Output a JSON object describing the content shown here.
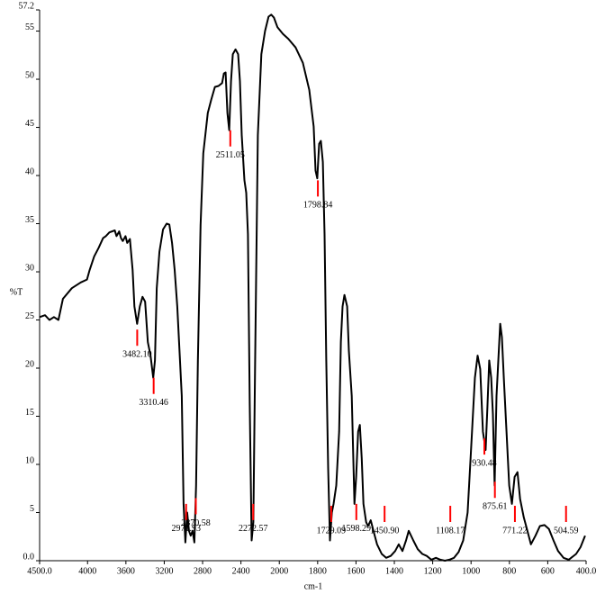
{
  "chart_data": {
    "type": "line",
    "y_label": "%T",
    "x_label": "cm-1",
    "xlim": [
      4500,
      400
    ],
    "xticks": [
      {
        "value": 4500,
        "label": "4500.0"
      },
      4000,
      3600,
      3200,
      2800,
      2400,
      2000,
      1800,
      1600,
      1400,
      1200,
      1000,
      800,
      600,
      {
        "value": 400,
        "label": "400.0"
      }
    ],
    "x_scale_change": {
      "at": 2000,
      "factor": 2
    },
    "ylim": [
      0,
      57.2
    ],
    "yticks": [
      {
        "value": 0,
        "label": "0.0"
      },
      5,
      10,
      15,
      20,
      25,
      30,
      35,
      40,
      45,
      50,
      55,
      57.2
    ],
    "color": "#000000",
    "x": [
      4500,
      4444,
      4398,
      4351,
      4304,
      4257,
      4164,
      4071,
      4006,
      3978,
      3931,
      3884,
      3838,
      3810,
      3772,
      3716,
      3698,
      3670,
      3651,
      3632,
      3604,
      3586,
      3558,
      3530,
      3511,
      3483,
      3455,
      3427,
      3399,
      3371,
      3343,
      3315,
      3297,
      3278,
      3250,
      3213,
      3175,
      3147,
      3119,
      3091,
      3064,
      3045,
      3017,
      2998,
      2980,
      2961,
      2942,
      2924,
      2905,
      2886,
      2868,
      2849,
      2821,
      2793,
      2746,
      2709,
      2672,
      2634,
      2597,
      2578,
      2560,
      2541,
      2522,
      2504,
      2485,
      2457,
      2429,
      2411,
      2392,
      2364,
      2345,
      2327,
      2308,
      2289,
      2271,
      2252,
      2224,
      2187,
      2149,
      2112,
      2084,
      2056,
      2019,
      1981,
      1953,
      1915,
      1877,
      1844,
      1821,
      1811,
      1802,
      1792,
      1783,
      1773,
      1764,
      1755,
      1745,
      1736,
      1726,
      1717,
      1703,
      1688,
      1679,
      1670,
      1660,
      1646,
      1637,
      1622,
      1608,
      1599,
      1589,
      1580,
      1570,
      1561,
      1547,
      1537,
      1523,
      1509,
      1490,
      1466,
      1443,
      1419,
      1396,
      1377,
      1358,
      1339,
      1325,
      1301,
      1278,
      1254,
      1231,
      1207,
      1183,
      1160,
      1136,
      1113,
      1089,
      1065,
      1041,
      1018,
      995,
      980,
      966,
      952,
      938,
      924,
      914,
      905,
      895,
      886,
      877,
      867,
      858,
      848,
      839,
      829,
      815,
      801,
      787,
      773,
      758,
      744,
      725,
      706,
      688,
      664,
      641,
      617,
      594,
      570,
      546,
      518,
      490,
      452,
      429,
      405
    ],
    "values": [
      25.3,
      25.5,
      25.0,
      25.3,
      25.0,
      27.2,
      28.3,
      28.9,
      29.2,
      30.2,
      31.6,
      32.5,
      33.5,
      33.7,
      34.1,
      34.3,
      33.7,
      34.2,
      33.5,
      33.2,
      33.7,
      33.0,
      33.4,
      30.2,
      26.4,
      24.6,
      26.4,
      27.4,
      26.9,
      22.7,
      21.3,
      19.0,
      20.8,
      28.3,
      32.1,
      34.4,
      35.0,
      34.9,
      33.0,
      30.2,
      26.4,
      22.7,
      17.1,
      5.9,
      1.9,
      5.0,
      3.1,
      2.6,
      3.1,
      1.9,
      7.8,
      20.8,
      34.9,
      42.3,
      46.5,
      47.9,
      49.2,
      49.3,
      49.6,
      50.6,
      50.7,
      46.5,
      44.7,
      49.8,
      52.6,
      53.1,
      52.6,
      49.8,
      44.2,
      39.5,
      38.2,
      33.9,
      16.2,
      2.1,
      4.0,
      20.8,
      44.2,
      52.6,
      55.0,
      56.5,
      56.7,
      56.4,
      55.4,
      54.7,
      54.2,
      53.3,
      51.7,
      48.9,
      45.1,
      40.5,
      39.7,
      43.3,
      43.6,
      41.4,
      33.9,
      20.8,
      9.6,
      2.1,
      5.0,
      5.9,
      7.8,
      13.4,
      22.7,
      26.4,
      27.6,
      26.4,
      21.8,
      17.1,
      5.9,
      8.7,
      13.4,
      14.1,
      10.6,
      5.9,
      4.0,
      3.6,
      4.2,
      3.1,
      1.7,
      0.7,
      0.3,
      0.5,
      1.0,
      1.7,
      1.0,
      2.1,
      3.1,
      2.1,
      1.2,
      0.7,
      0.5,
      0.1,
      0.3,
      0.1,
      0.0,
      0.1,
      0.3,
      0.9,
      2.1,
      5.0,
      13.4,
      19.0,
      21.3,
      19.9,
      13.4,
      11.5,
      16.2,
      20.8,
      19.0,
      15.2,
      7.8,
      17.1,
      20.8,
      24.6,
      23.2,
      19.0,
      13.4,
      7.8,
      5.9,
      8.7,
      9.2,
      6.4,
      4.5,
      3.1,
      1.7,
      2.6,
      3.6,
      3.7,
      3.3,
      2.1,
      1.0,
      0.3,
      0.1,
      0.7,
      1.4,
      2.6
    ],
    "peak_color": "#ff0000",
    "peaks": [
      {
        "x": 3482.1,
        "label": "3482.10",
        "y": 24.0
      },
      {
        "x": 3310.46,
        "label": "3310.46",
        "y": 19.0
      },
      {
        "x": 2971.93,
        "label": "2971.93",
        "y": 5.9
      },
      {
        "x": 2870.58,
        "label": "2870.58",
        "y": 6.5
      },
      {
        "x": 2511.05,
        "label": "2511.05",
        "y": 44.7
      },
      {
        "x": 2272.57,
        "label": "2272.57",
        "y": 5.9
      },
      {
        "x": 1798.84,
        "label": "1798.84",
        "y": 39.5
      },
      {
        "x": 1729.09,
        "label": "1729.09",
        "y": 5.7
      },
      {
        "x": 1598.29,
        "label": "1598.29",
        "y": 5.9
      },
      {
        "x": 1450.9,
        "label": "1450.90",
        "y": 5.7
      },
      {
        "x": 1108.17,
        "label": "1108.17",
        "y": 5.7
      },
      {
        "x": 930.48,
        "label": "930.48",
        "y": 12.7
      },
      {
        "x": 875.61,
        "label": "875.61",
        "y": 8.2
      },
      {
        "x": 771.22,
        "label": "771.22",
        "y": 5.7
      },
      {
        "x": 504.59,
        "label": "504.59",
        "y": 5.7
      }
    ]
  }
}
